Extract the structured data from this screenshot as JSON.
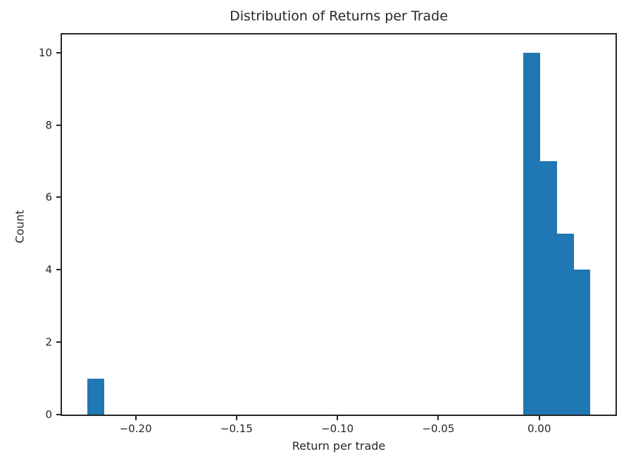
{
  "chart_data": {
    "type": "bar",
    "subtype": "histogram",
    "title": "Distribution of Returns per Trade",
    "xlabel": "Return per trade",
    "ylabel": "Count",
    "bar_color": "#1f77b4",
    "axis_color": "#262626",
    "background_color": "#ffffff",
    "grid": false,
    "legend": false,
    "xlim": [
      -0.2365,
      0.0378
    ],
    "ylim": [
      0,
      10.5
    ],
    "bin_start": -0.224,
    "bin_width": 0.008313,
    "num_bins": 30,
    "counts": [
      1,
      0,
      0,
      0,
      0,
      0,
      0,
      0,
      0,
      0,
      0,
      0,
      0,
      0,
      0,
      0,
      0,
      0,
      0,
      0,
      0,
      0,
      0,
      0,
      0,
      0,
      10,
      7,
      5,
      4
    ],
    "xticks": [
      {
        "value": -0.2,
        "label": "−0.20"
      },
      {
        "value": -0.15,
        "label": "−0.15"
      },
      {
        "value": -0.1,
        "label": "−0.10"
      },
      {
        "value": -0.05,
        "label": "−0.05"
      },
      {
        "value": 0.0,
        "label": "0.00"
      }
    ],
    "yticks": [
      {
        "value": 0,
        "label": "0"
      },
      {
        "value": 2,
        "label": "2"
      },
      {
        "value": 4,
        "label": "4"
      },
      {
        "value": 6,
        "label": "6"
      },
      {
        "value": 8,
        "label": "8"
      },
      {
        "value": 10,
        "label": "10"
      }
    ]
  }
}
